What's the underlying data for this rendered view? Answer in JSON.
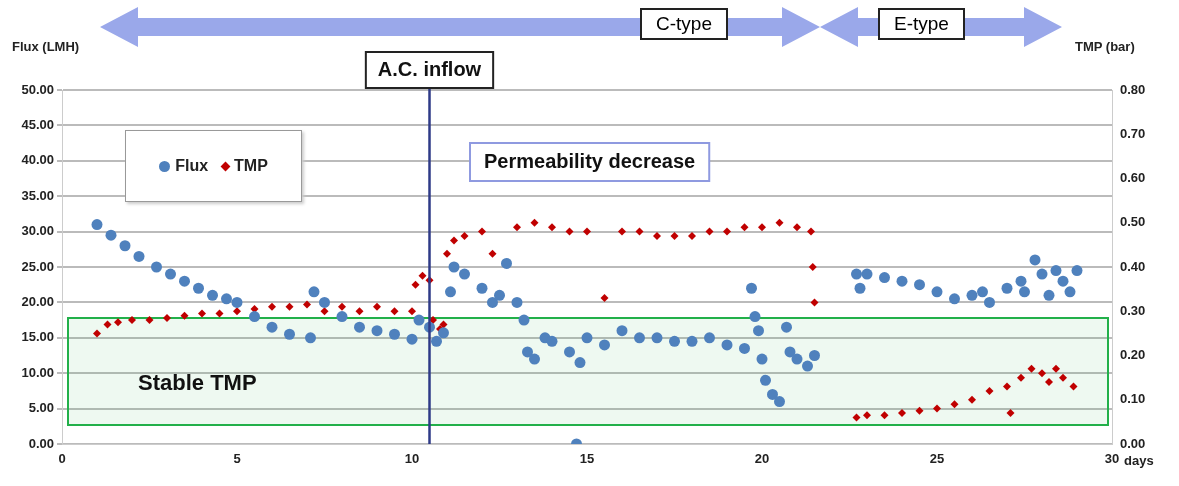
{
  "chart_data": {
    "type": "scatter",
    "xlabel": "days",
    "ylabel": "Flux (LMH)",
    "y2label": "TMP (bar)",
    "xlim": [
      0,
      30
    ],
    "xticks": [
      0,
      5,
      10,
      15,
      20,
      25,
      30
    ],
    "ylim": [
      0,
      50
    ],
    "yticks": [
      {
        "value": 0,
        "label": "0.00"
      },
      {
        "value": 5,
        "label": "5.00"
      },
      {
        "value": 10,
        "label": "10.00"
      },
      {
        "value": 15,
        "label": "15.00"
      },
      {
        "value": 20,
        "label": "20.00"
      },
      {
        "value": 25,
        "label": "25.00"
      },
      {
        "value": 30,
        "label": "30.00"
      },
      {
        "value": 35,
        "label": "35.00"
      },
      {
        "value": 40,
        "label": "40.00"
      },
      {
        "value": 45,
        "label": "45.00"
      },
      {
        "value": 50,
        "label": "50.00"
      }
    ],
    "y2lim": [
      0,
      0.8
    ],
    "y2ticks": [
      {
        "value": 0,
        "label": "0.00"
      },
      {
        "value": 0.1,
        "label": "0.10"
      },
      {
        "value": 0.2,
        "label": "0.20"
      },
      {
        "value": 0.3,
        "label": "0.30"
      },
      {
        "value": 0.4,
        "label": "0.40"
      },
      {
        "value": 0.5,
        "label": "0.50"
      },
      {
        "value": 0.6,
        "label": "0.60"
      },
      {
        "value": 0.7,
        "label": "0.70"
      },
      {
        "value": 0.8,
        "label": "0.80"
      }
    ],
    "grid": "y",
    "legend": "top left",
    "series": [
      {
        "name": "Flux",
        "color": "#4f81bd",
        "marker": "circle",
        "x": [
          1,
          1.4,
          1.8,
          2.2,
          2.7,
          3.1,
          3.5,
          3.9,
          4.3,
          4.7,
          5,
          5.5,
          6,
          6.5,
          7.1,
          7.2,
          7.5,
          8,
          8.5,
          9,
          9.5,
          10,
          10.2,
          10.5,
          10.7,
          10.9,
          11.1,
          11.2,
          11.5,
          12,
          12.3,
          12.5,
          12.7,
          13,
          13.2,
          13.3,
          13.5,
          13.8,
          14,
          14.5,
          14.7,
          14.8,
          15,
          15.5,
          16,
          16.5,
          17,
          17.5,
          18,
          18.5,
          19,
          19.5,
          19.7,
          19.8,
          19.9,
          20,
          20.1,
          20.3,
          20.5,
          20.7,
          20.8,
          21,
          21.3,
          21.5,
          22.7,
          22.8,
          23,
          23.5,
          24,
          24.5,
          25,
          25.5,
          26,
          26.3,
          26.5,
          27,
          27.4,
          27.5,
          27.8,
          28,
          28.2,
          28.4,
          28.6,
          28.8,
          29
        ],
        "values": [
          31,
          29.5,
          28,
          26.5,
          25,
          24,
          23,
          22,
          21,
          20.5,
          20,
          18,
          16.5,
          15.5,
          15,
          21.5,
          20,
          18,
          16.5,
          16,
          15.5,
          14.8,
          17.5,
          16.5,
          14.5,
          15.7,
          21.5,
          25,
          24,
          22,
          20,
          21,
          25.5,
          20,
          17.5,
          13,
          12,
          15,
          14.5,
          13,
          0,
          11.5,
          15,
          14,
          16,
          15,
          15,
          14.5,
          14.5,
          15,
          14,
          13.5,
          22,
          18,
          16,
          12,
          9,
          7,
          6,
          16.5,
          13,
          12,
          11,
          12.5,
          24,
          22,
          24,
          23.5,
          23,
          22.5,
          21.5,
          20.5,
          21,
          21.5,
          20,
          22,
          23,
          21.5,
          26,
          24,
          21,
          24.5,
          23,
          21.5,
          24.5
        ]
      },
      {
        "name": "TMP",
        "color": "#c00000",
        "marker": "diamond",
        "axis": "y2",
        "x": [
          1,
          1.3,
          1.6,
          2,
          2.5,
          3,
          3.5,
          4,
          4.5,
          5,
          5.5,
          6,
          6.5,
          7,
          7.5,
          8,
          8.5,
          9,
          9.5,
          10,
          10.1,
          10.3,
          10.5,
          10.6,
          10.8,
          10.9,
          11,
          11.2,
          11.5,
          12,
          12.3,
          13,
          13.5,
          14,
          14.5,
          15,
          15.5,
          16,
          16.5,
          17,
          17.5,
          18,
          18.5,
          19,
          19.5,
          20,
          20.5,
          21,
          21.4,
          21.45,
          21.5,
          22.7,
          23,
          23.5,
          24,
          24.5,
          25,
          25.5,
          26,
          26.5,
          27,
          27.1,
          27.4,
          27.7,
          28,
          28.2,
          28.4,
          28.6,
          28.9
        ],
        "values": [
          0.25,
          0.27,
          0.275,
          0.28,
          0.28,
          0.285,
          0.29,
          0.295,
          0.295,
          0.3,
          0.305,
          0.31,
          0.31,
          0.315,
          0.3,
          0.31,
          0.3,
          0.31,
          0.3,
          0.3,
          0.36,
          0.38,
          0.37,
          0.28,
          0.26,
          0.27,
          0.43,
          0.46,
          0.47,
          0.48,
          0.43,
          0.49,
          0.5,
          0.49,
          0.48,
          0.48,
          0.33,
          0.48,
          0.48,
          0.47,
          0.47,
          0.47,
          0.48,
          0.48,
          0.49,
          0.49,
          0.5,
          0.49,
          0.48,
          0.4,
          0.32,
          0.06,
          0.065,
          0.065,
          0.07,
          0.075,
          0.08,
          0.09,
          0.1,
          0.12,
          0.13,
          0.07,
          0.15,
          0.17,
          0.16,
          0.14,
          0.17,
          0.15,
          0.13
        ]
      }
    ],
    "ref_lines": [
      {
        "axis": "x",
        "value": 10.5,
        "label": "A.C. inflow",
        "color": "#2e3a87"
      }
    ],
    "bands": [
      {
        "axis": "y",
        "from": 2.7,
        "to": 17.8,
        "label": "Stable TMP",
        "color": "#22b04a"
      }
    ],
    "annotations": [
      "Permeability decrease",
      "C-type",
      "E-type"
    ]
  }
}
